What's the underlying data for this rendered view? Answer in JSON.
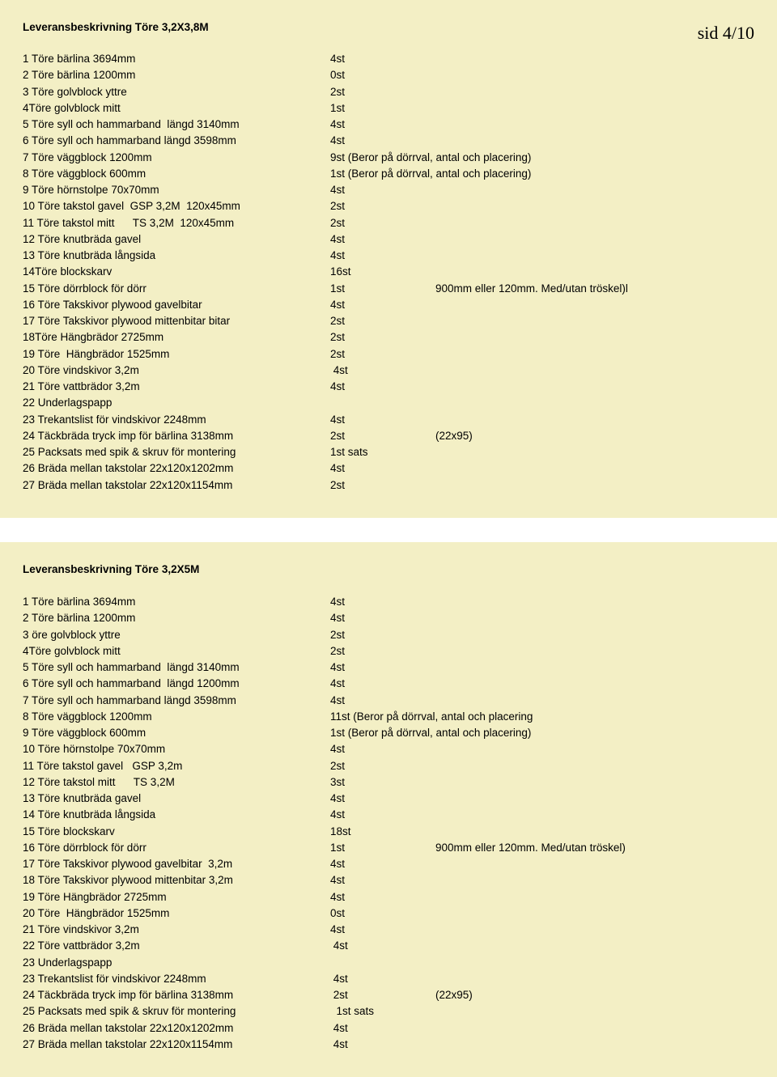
{
  "page_label": "sid 4/10",
  "section1": {
    "title": "Leveransbeskrivning Töre 3,2X3,8M",
    "rows": [
      {
        "desc": "1 Töre bärlina 3694mm",
        "qty": "4st",
        "note": ""
      },
      {
        "desc": "2 Töre bärlina 1200mm",
        "qty": "0st",
        "note": ""
      },
      {
        "desc": "3 Töre golvblock yttre",
        "qty": "2st",
        "note": ""
      },
      {
        "desc": "4Töre golvblock mitt",
        "qty": "1st",
        "note": ""
      },
      {
        "desc": "5 Töre syll och hammarband  längd 3140mm",
        "qty": "4st",
        "note": ""
      },
      {
        "desc": "6 Töre syll och hammarband längd 3598mm",
        "qty": "4st",
        "note": ""
      },
      {
        "desc": "7 Töre väggblock 1200mm",
        "qty": "9st (Beror på dörrval, antal och placering)",
        "note": ""
      },
      {
        "desc": "8 Töre väggblock 600mm",
        "qty": "1st (Beror på dörrval, antal och placering)",
        "note": ""
      },
      {
        "desc": "9 Töre hörnstolpe 70x70mm",
        "qty": "4st",
        "note": ""
      },
      {
        "desc": "10 Töre takstol gavel  GSP 3,2M  120x45mm",
        "qty": "2st",
        "note": ""
      },
      {
        "desc": "11 Töre takstol mitt      TS 3,2M  120x45mm",
        "qty": "2st",
        "note": ""
      },
      {
        "desc": "12 Töre knutbräda gavel",
        "qty": "4st",
        "note": ""
      },
      {
        "desc": "13 Töre knutbräda långsida",
        "qty": "4st",
        "note": ""
      },
      {
        "desc": "14Töre blockskarv",
        "qty": "16st",
        "note": ""
      },
      {
        "desc": "15 Töre dörrblock för dörr",
        "qty": "1st",
        "note": "900mm eller 120mm. Med/utan tröskel)l"
      },
      {
        "desc": "16 Töre Takskivor plywood gavelbitar",
        "qty": "4st",
        "note": ""
      },
      {
        "desc": "17 Töre Takskivor plywood mittenbitar bitar",
        "qty": "2st",
        "note": ""
      },
      {
        "desc": "18Töre Hängbrädor 2725mm",
        "qty": "2st",
        "note": ""
      },
      {
        "desc": "19 Töre  Hängbrädor 1525mm",
        "qty": "2st",
        "note": ""
      },
      {
        "desc": "20 Töre vindskivor 3,2m",
        "qty": " 4st",
        "note": ""
      },
      {
        "desc": "21 Töre vattbrädor 3,2m",
        "qty": "4st",
        "note": ""
      },
      {
        "desc": "22 Underlagspapp",
        "qty": "",
        "note": ""
      },
      {
        "desc": "23 Trekantslist för vindskivor 2248mm",
        "qty": "4st",
        "note": ""
      },
      {
        "desc": "24 Täckbräda tryck imp för bärlina 3138mm",
        "qty": "2st",
        "note": "(22x95)"
      },
      {
        "desc": "25 Packsats med spik & skruv för montering",
        "qty": "1st sats",
        "note": ""
      },
      {
        "desc": "26 Bräda mellan takstolar 22x120x1202mm",
        "qty": "4st",
        "note": ""
      },
      {
        "desc": "27 Bräda mellan takstolar 22x120x1154mm",
        "qty": "2st",
        "note": ""
      }
    ]
  },
  "section2": {
    "title": "Leveransbeskrivning Töre 3,2X5M",
    "rows": [
      {
        "desc": "1 Töre bärlina 3694mm",
        "qty": "4st",
        "note": ""
      },
      {
        "desc": "2 Töre bärlina 1200mm",
        "qty": "4st",
        "note": ""
      },
      {
        "desc": "3 öre golvblock yttre",
        "qty": "2st",
        "note": ""
      },
      {
        "desc": "4Töre golvblock mitt",
        "qty": "2st",
        "note": ""
      },
      {
        "desc": "5 Töre syll och hammarband  längd 3140mm",
        "qty": "4st",
        "note": ""
      },
      {
        "desc": "6 Töre syll och hammarband  längd 1200mm",
        "qty": "4st",
        "note": ""
      },
      {
        "desc": "7 Töre syll och hammarband längd 3598mm",
        "qty": "4st",
        "note": ""
      },
      {
        "desc": "8 Töre väggblock 1200mm",
        "qty": "11st (Beror på dörrval, antal och placering",
        "note": ""
      },
      {
        "desc": "9 Töre väggblock 600mm",
        "qty": "1st (Beror på dörrval, antal och placering)",
        "note": ""
      },
      {
        "desc": "10 Töre hörnstolpe 70x70mm",
        "qty": "4st",
        "note": ""
      },
      {
        "desc": "11 Töre takstol gavel   GSP 3,2m",
        "qty": "2st",
        "note": ""
      },
      {
        "desc": "12 Töre takstol mitt      TS 3,2M",
        "qty": "3st",
        "note": ""
      },
      {
        "desc": "13 Töre knutbräda gavel",
        "qty": "4st",
        "note": ""
      },
      {
        "desc": "14 Töre knutbräda långsida",
        "qty": "4st",
        "note": ""
      },
      {
        "desc": "15 Töre blockskarv",
        "qty": "18st",
        "note": ""
      },
      {
        "desc": "16 Töre dörrblock för dörr",
        "qty": "1st",
        "note": "900mm eller 120mm. Med/utan tröskel)"
      },
      {
        "desc": "17 Töre Takskivor plywood gavelbitar  3,2m",
        "qty": "4st",
        "note": ""
      },
      {
        "desc": "18 Töre Takskivor plywood mittenbitar 3,2m",
        "qty": "4st",
        "note": ""
      },
      {
        "desc": "19 Töre Hängbrädor 2725mm",
        "qty": "4st",
        "note": ""
      },
      {
        "desc": "20 Töre  Hängbrädor 1525mm",
        "qty": "0st",
        "note": ""
      },
      {
        "desc": "21 Töre vindskivor 3,2m",
        "qty": "4st",
        "note": ""
      },
      {
        "desc": "22 Töre vattbrädor 3,2m",
        "qty": " 4st",
        "note": ""
      },
      {
        "desc": "23 Underlagspapp",
        "qty": "",
        "note": ""
      },
      {
        "desc": "23 Trekantslist för vindskivor 2248mm",
        "qty": " 4st",
        "note": ""
      },
      {
        "desc": "24 Täckbräda tryck imp för bärlina 3138mm",
        "qty": " 2st",
        "note": "(22x95)"
      },
      {
        "desc": "25 Packsats med spik & skruv för montering",
        "qty": "  1st sats",
        "note": ""
      },
      {
        "desc": "26 Bräda mellan takstolar 22x120x1202mm",
        "qty": " 4st",
        "note": ""
      },
      {
        "desc": "27 Bräda mellan takstolar 22x120x1154mm",
        "qty": " 4st",
        "note": ""
      }
    ]
  }
}
